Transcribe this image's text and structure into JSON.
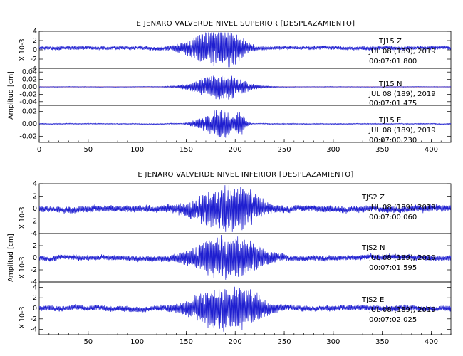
{
  "chart_data": [
    {
      "type": "line",
      "title": "E JENARO VALVERDE NIVEL SUPERIOR [DESPLAZAMIENTO]",
      "xlim": [
        0,
        420
      ],
      "x_ticks": [
        "0",
        "50",
        "100",
        "150",
        "200",
        "250",
        "300",
        "350",
        "400"
      ],
      "ylabel": "Amplitud [cm]",
      "grid": false,
      "panels": [
        {
          "channel": "TJ15   Z",
          "date": "JUL 08 (189), 2019",
          "time": "00:07:01.800",
          "scale_label": "X 10-3",
          "ylim": [
            -4,
            4
          ],
          "y_ticks": [
            "-4",
            "-2",
            "0",
            "2",
            "4"
          ],
          "color": "#1f1fd0",
          "envelope": {
            "noise": 0.45,
            "offset": 0.4,
            "events": [
              [
                175,
                25,
                3.8
              ],
              [
                195,
                15,
                2.5
              ]
            ]
          }
        },
        {
          "channel": "TJ15   N",
          "date": "JUL 08 (189), 2019",
          "time": "00:07:01.475",
          "ylim": [
            -0.05,
            0.05
          ],
          "y_ticks": [
            "-0.04",
            "-0.02",
            "0.00",
            "0.02",
            "0.04"
          ],
          "color": "#1f1fd0",
          "baseline_color": "#d02020",
          "envelope": {
            "noise": 0.0008,
            "offset": 0,
            "events": [
              [
                185,
                28,
                0.04
              ]
            ]
          }
        },
        {
          "channel": "TJ15   E",
          "date": "JUL 08 (189), 2019",
          "time": "00:07:00.230",
          "ylim": [
            -0.03,
            0.03
          ],
          "y_ticks": [
            "-0.02",
            "0.00",
            "0.02"
          ],
          "color": "#1f1fd0",
          "envelope": {
            "noise": 0.0008,
            "offset": 0,
            "events": [
              [
                185,
                12,
                0.028
              ],
              [
                205,
                6,
                0.02
              ],
              [
                165,
                10,
                0.01
              ]
            ]
          }
        }
      ]
    },
    {
      "type": "line",
      "title": "E JENARO VALVERDE NIVEL INFERIOR [DESPLAZAMIENTO]",
      "xlim": [
        0,
        420
      ],
      "x_ticks": [
        "50",
        "100",
        "150",
        "200",
        "250",
        "300",
        "350",
        "400"
      ],
      "ylabel": "Amplitud [cm]",
      "grid": false,
      "panels": [
        {
          "channel": "TJS2   Z",
          "date": "JUL 08 (189), 2019",
          "time": "00:07:00.060",
          "scale_label": "X 10-3",
          "ylim": [
            -4,
            4
          ],
          "y_ticks": [
            "-4",
            "-2",
            "0",
            "2",
            "4"
          ],
          "color": "#1f1fd0",
          "envelope": {
            "noise": 0.6,
            "offset": 0,
            "events": [
              [
                185,
                30,
                3.2
              ],
              [
                210,
                20,
                1.5
              ]
            ]
          }
        },
        {
          "channel": "TJS2   N",
          "date": "JUL 08 (189), 2019",
          "time": "00:07:01.595",
          "scale_label": "X 10-3",
          "ylim": [
            -4,
            4
          ],
          "y_ticks": [
            "-4",
            "-2",
            "0",
            "2",
            "4"
          ],
          "color": "#1f1fd0",
          "envelope": {
            "noise": 0.5,
            "offset": 0,
            "events": [
              [
                185,
                30,
                3.5
              ],
              [
                215,
                20,
                1.5
              ]
            ]
          }
        },
        {
          "channel": "TJS2   E",
          "date": "JUL 08 (189), 2019",
          "time": "00:07:02.025",
          "scale_label": "X 10-3",
          "ylim": [
            -5,
            5
          ],
          "y_ticks": [
            "-4",
            "-2",
            "0",
            "2",
            "4"
          ],
          "color": "#1f1fd0",
          "envelope": {
            "noise": 0.6,
            "offset": 0,
            "events": [
              [
                185,
                30,
                4.0
              ],
              [
                215,
                20,
                1.8
              ]
            ]
          }
        }
      ]
    }
  ]
}
